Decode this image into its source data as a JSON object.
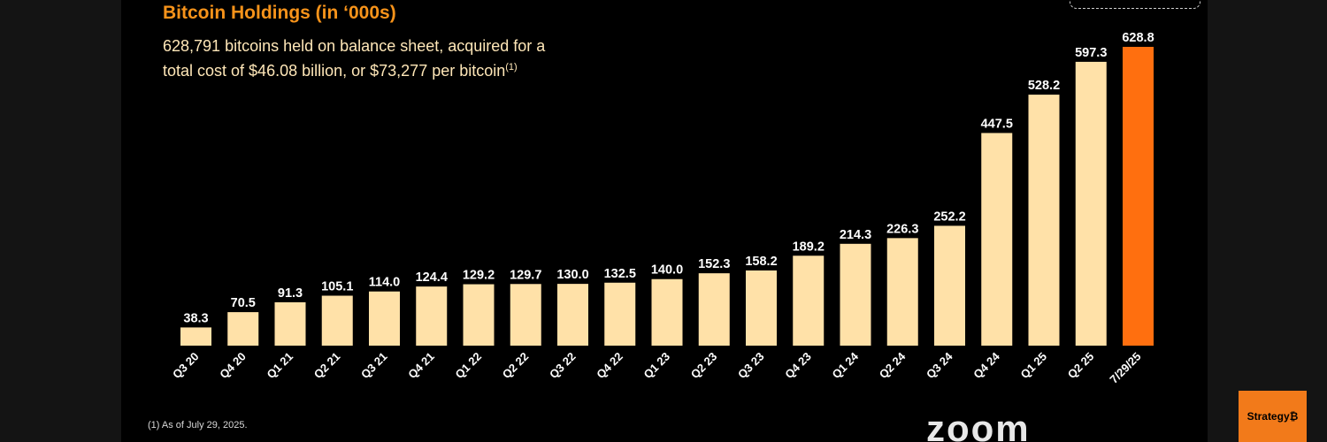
{
  "slide": {
    "title": "Bitcoin Holdings (in ‘000s)",
    "subtitle": "628,791 bitcoins held on balance sheet, acquired for a total cost of $46.08 billion, or $73,277 per bitcoin",
    "subtitle_sup": "(1)",
    "footnote": "(1) As of July 29, 2025."
  },
  "overlay": {
    "zoom_logo": "zoom",
    "strategy_logo": "Strategy₿"
  },
  "colors": {
    "bar": "#FFE1A8",
    "highlight_bar": "#FF6F0F",
    "title": "#F7931A",
    "background": "#000000"
  },
  "chart_data": {
    "type": "bar",
    "title": "Bitcoin Holdings (in ‘000s)",
    "xlabel": "",
    "ylabel": "",
    "ylim": [
      0,
      650
    ],
    "grid": false,
    "categories": [
      "Q3 20",
      "Q4 20",
      "Q1 21",
      "Q2 21",
      "Q3 21",
      "Q4 21",
      "Q1 22",
      "Q2 22",
      "Q3 22",
      "Q4 22",
      "Q1 23",
      "Q2 23",
      "Q3 23",
      "Q4 23",
      "Q1 24",
      "Q2 24",
      "Q3 24",
      "Q4 24",
      "Q1 25",
      "Q2 25",
      "7/29/25"
    ],
    "values": [
      38.3,
      70.5,
      91.3,
      105.1,
      114.0,
      124.4,
      129.2,
      129.7,
      130.0,
      132.5,
      140.0,
      152.3,
      158.2,
      189.2,
      214.3,
      226.3,
      252.2,
      447.5,
      528.2,
      597.3,
      628.8
    ],
    "value_labels": [
      "38.3",
      "70.5",
      "91.3",
      "105.1",
      "114.0",
      "124.4",
      "129.2",
      "129.7",
      "130.0",
      "132.5",
      "140.0",
      "152.3",
      "158.2",
      "189.2",
      "214.3",
      "226.3",
      "252.2",
      "447.5",
      "528.2",
      "597.3",
      "628.8"
    ],
    "highlight_index": 20
  }
}
